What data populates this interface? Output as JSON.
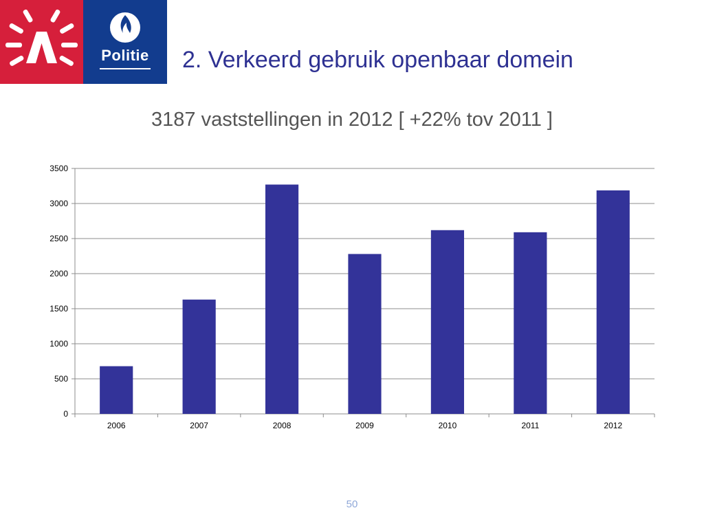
{
  "header": {
    "title": "2. Verkeerd gebruik openbaar domein",
    "antwerp_logo_letter": "A",
    "police_logo_label": "Politie"
  },
  "subtitle": "3187 vaststellingen in 2012 [ +22% tov 2011 ]",
  "footer": {
    "page_number": "50"
  },
  "colors": {
    "bar": "#333399",
    "title": "#2e3192",
    "antwerp_red": "#d61f3b",
    "police_blue": "#123c8e"
  },
  "chart_data": {
    "type": "bar",
    "categories": [
      "2006",
      "2007",
      "2008",
      "2009",
      "2010",
      "2011",
      "2012"
    ],
    "values": [
      680,
      1630,
      3270,
      2280,
      2620,
      2590,
      3187
    ],
    "ylim": [
      0,
      3500
    ],
    "yticks": [
      0,
      500,
      1000,
      1500,
      2000,
      2500,
      3000,
      3500
    ],
    "grid": true,
    "legend": "none",
    "title": "",
    "xlabel": "",
    "ylabel": ""
  }
}
